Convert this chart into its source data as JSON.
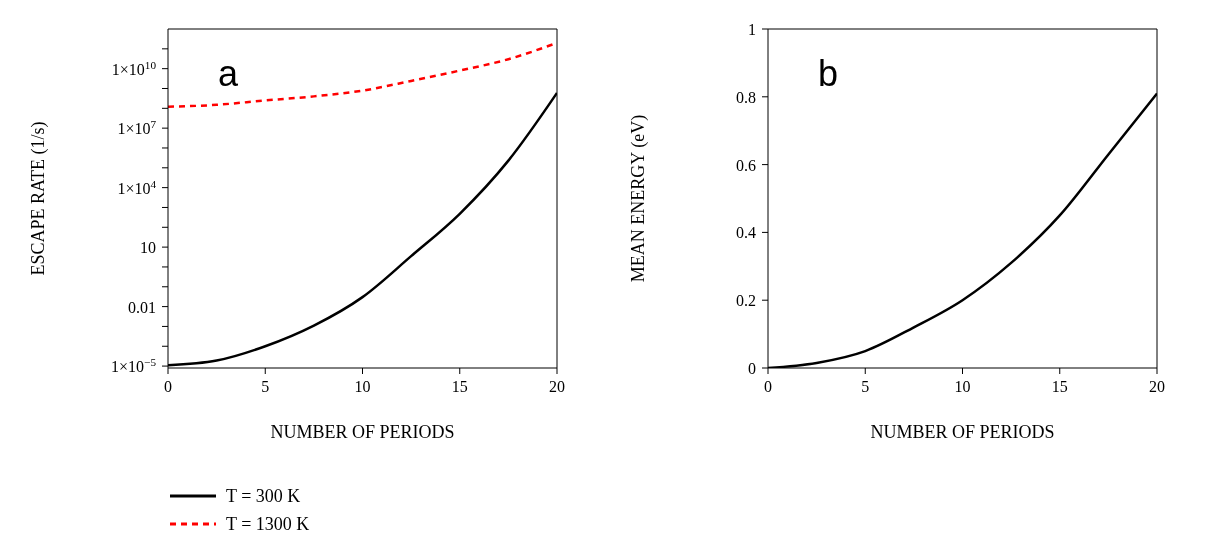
{
  "chart_data": [
    {
      "type": "line",
      "xlabel": "NUMBER OF PERIODS",
      "ylabel": "ESCAPE RATE (1/s)",
      "annotations": [
        "a"
      ],
      "log": "y",
      "legend": "bottom",
      "grid": false,
      "marker": "none",
      "x": [
        0,
        2.5,
        5,
        7.5,
        10,
        12.5,
        15,
        17.5,
        20
      ],
      "series": [
        {
          "name": "T = 300 K",
          "color": "#000000",
          "line_style": "solid",
          "values": [
            1.1e-05,
            1.9e-05,
            0.0001,
            0.0011,
            0.03,
            3.5,
            480,
            230000.0,
            600000000.0
          ]
        },
        {
          "name": "T = 1300 K",
          "color": "#ff0000",
          "line_style": "dashed",
          "values": [
            120000000.0,
            150000000.0,
            250000000.0,
            400000000.0,
            780000000.0,
            2400000000.0,
            8000000000.0,
            30000000000.0,
            200000000000.0
          ]
        }
      ],
      "xlim": [
        0,
        20
      ],
      "xticks": [
        0,
        5,
        10,
        15,
        20
      ],
      "ylim": [
        8e-06,
        1000000000000.0
      ],
      "yticks": [
        {
          "value": 1e-05,
          "label": "1×10$^{−5}$"
        },
        {
          "value": 0.0001,
          "label": null
        },
        {
          "value": 0.001,
          "label": null
        },
        0.01,
        {
          "value": 0.1,
          "label": null
        },
        {
          "value": 1,
          "label": null
        },
        10,
        {
          "value": 100,
          "label": null
        },
        {
          "value": 1000,
          "label": null
        },
        {
          "value": 10000.0,
          "label": "1×10$^{4}$"
        },
        {
          "value": 100000.0,
          "label": null
        },
        {
          "value": 1000000.0,
          "label": null
        },
        {
          "value": 10000000.0,
          "label": "1×10$^{7}$"
        },
        {
          "value": 100000000.0,
          "label": null
        },
        {
          "value": 1000000000.0,
          "label": null
        },
        {
          "value": 10000000000.0,
          "label": "1×10$^{10}$"
        },
        {
          "value": 100000000000.0,
          "label": null
        }
      ]
    },
    {
      "type": "line",
      "xlabel": "NUMBER OF PERIODS",
      "ylabel": "MEAN ENERGY (eV)",
      "annotations": [
        "b"
      ],
      "grid": false,
      "marker": "none",
      "legend": false,
      "x": [
        0,
        2.5,
        5,
        7.5,
        10,
        12.5,
        15,
        17.5,
        20
      ],
      "series": [
        {
          "color": "#000000",
          "line_style": "solid",
          "values": [
            0,
            0.015,
            0.05,
            0.12,
            0.2,
            0.31,
            0.45,
            0.63,
            0.81
          ]
        }
      ],
      "xlim": [
        0,
        20
      ],
      "xticks": [
        0,
        5,
        10,
        15,
        20
      ],
      "ylim": [
        0,
        1
      ],
      "yticks": [
        0,
        0.2,
        0.4,
        0.6,
        0.8,
        1
      ]
    }
  ]
}
